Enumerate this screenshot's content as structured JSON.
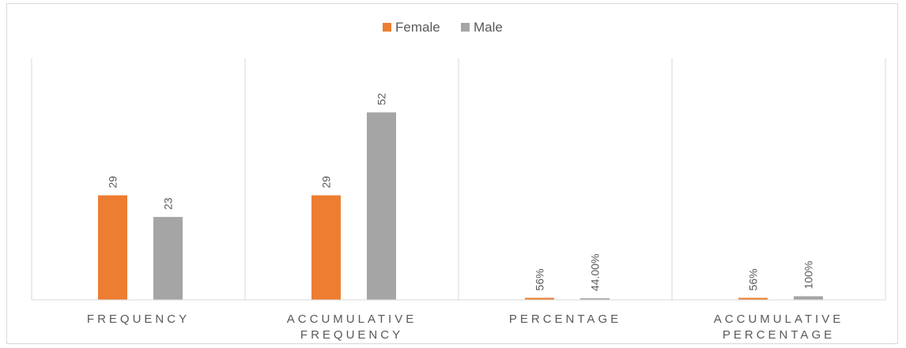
{
  "chart_data": {
    "type": "bar",
    "categories": [
      [
        "FREQUENCY"
      ],
      [
        "ACCUMULATIVE",
        "FREQUENCY"
      ],
      [
        "PERCENTAGE"
      ],
      [
        "ACCUMULATIVE",
        "PERCENTAGE"
      ]
    ],
    "series": [
      {
        "name": "Female",
        "color": "#ed7d31",
        "values": [
          29,
          29,
          0.56,
          0.56
        ],
        "labels": [
          "29",
          "29",
          "56%",
          "56%"
        ]
      },
      {
        "name": "Male",
        "color": "#a5a5a5",
        "values": [
          23,
          52,
          0.44,
          1.0
        ],
        "labels": [
          "23",
          "52",
          "44.00%",
          "100%"
        ]
      }
    ],
    "ylim": [
      0,
      58
    ],
    "legend_position": "top",
    "grid": false,
    "category_dividers": true
  }
}
